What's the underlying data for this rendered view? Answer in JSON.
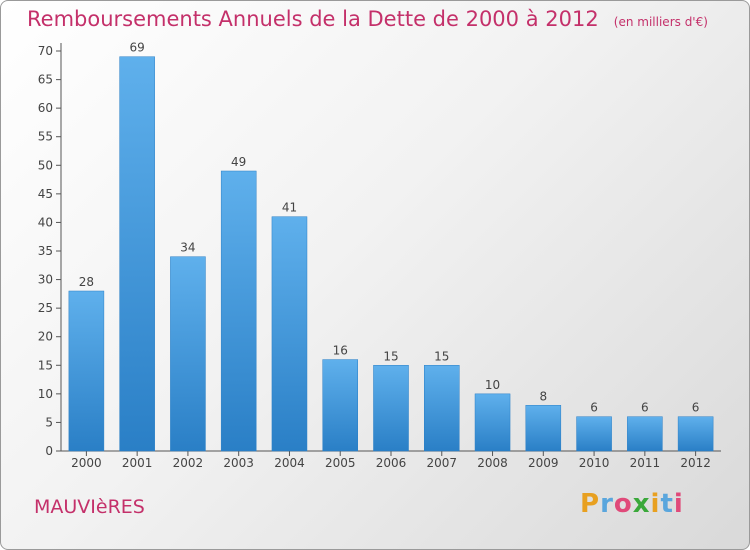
{
  "header": {
    "title": "Remboursements Annuels de la Dette de 2000 à 2012",
    "subtitle": "(en milliers d'€)"
  },
  "footer": {
    "commune": "MAUVIèRES",
    "logo": {
      "letters": [
        "P",
        "r",
        "o",
        "x",
        "i",
        "t",
        "i"
      ],
      "colors": [
        "#e8a020",
        "#5aa6dd",
        "#e04a7a",
        "#3aa83a",
        "#e8a020",
        "#5aa6dd",
        "#e04a7a"
      ]
    }
  },
  "colors": {
    "bar_light": "#5fb0ec",
    "bar_dark": "#2a7fc6",
    "title": "#c4306a",
    "axis": "#555555"
  },
  "chart_data": {
    "type": "bar",
    "categories": [
      "2000",
      "2001",
      "2002",
      "2003",
      "2004",
      "2005",
      "2006",
      "2007",
      "2008",
      "2009",
      "2010",
      "2011",
      "2012"
    ],
    "values": [
      28,
      69,
      34,
      49,
      41,
      16,
      15,
      15,
      10,
      8,
      6,
      6,
      6
    ],
    "title": "Remboursements Annuels de la Dette de 2000 à 2012",
    "ylim": [
      0,
      70
    ],
    "yticks": [
      0,
      5,
      10,
      15,
      20,
      25,
      30,
      35,
      40,
      45,
      50,
      55,
      60,
      65,
      70
    ],
    "grid": false,
    "legend": "none"
  }
}
